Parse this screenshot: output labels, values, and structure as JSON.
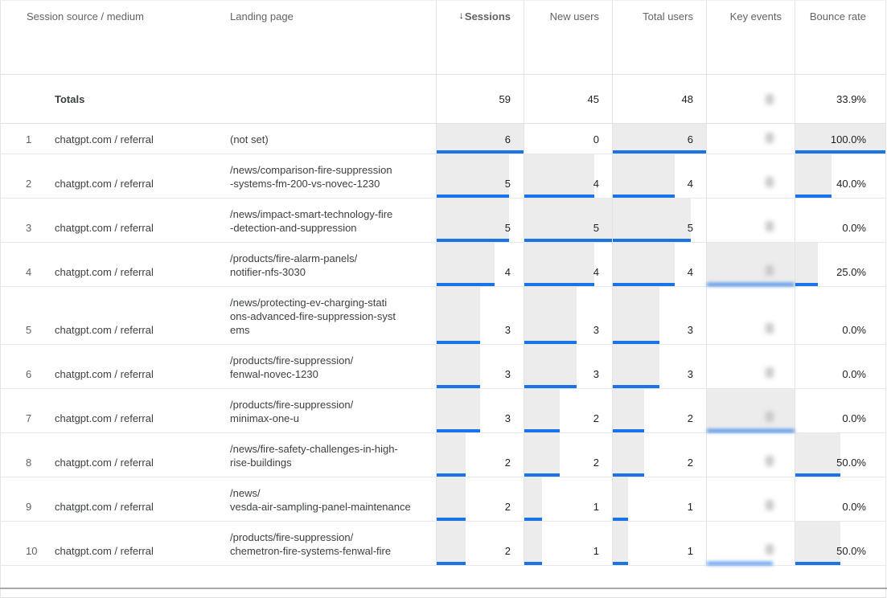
{
  "header": {
    "session_source": "Session source / medium",
    "landing_page": "Landing page",
    "sort_icon": "↓",
    "sessions": "Sessions",
    "new_users": "New users",
    "total_users": "Total users",
    "key_events": "Key events",
    "bounce_rate": "Bounce rate"
  },
  "sort": {
    "column": "Sessions",
    "direction": "descending"
  },
  "totals": {
    "label": "Totals",
    "sessions": "59",
    "new_users": "45",
    "total_users": "48",
    "key_events_redacted": true,
    "bounce_rate": "33.9%"
  },
  "column_maxima": {
    "sessions": 6,
    "new_users": 5,
    "total_users": 6,
    "bounce_rate": 100
  },
  "colors": {
    "bar": "#1a73e8",
    "bar_background": "#ececec"
  },
  "rows": [
    {
      "rank": "1",
      "source": "chatgpt.com / referral",
      "landing_lines": [
        "(not set)"
      ],
      "sessions": 6,
      "new_users": 0,
      "total_users": 6,
      "key_events_redacted": true,
      "key_bar_bg": false,
      "key_bar_line": 0,
      "bounce_rate": "100.0%"
    },
    {
      "rank": "2",
      "source": "chatgpt.com / referral",
      "landing_lines": [
        "/news/comparison-fire-suppression",
        "-systems-fm-200-vs-novec-1230"
      ],
      "sessions": 5,
      "new_users": 4,
      "total_users": 4,
      "key_events_redacted": true,
      "key_bar_bg": false,
      "key_bar_line": 0,
      "bounce_rate": "40.0%"
    },
    {
      "rank": "3",
      "source": "chatgpt.com / referral",
      "landing_lines": [
        "/news/impact-smart-technology-fire",
        "-detection-and-suppression"
      ],
      "sessions": 5,
      "new_users": 5,
      "total_users": 5,
      "key_events_redacted": true,
      "key_bar_bg": false,
      "key_bar_line": 0,
      "bounce_rate": "0.0%"
    },
    {
      "rank": "4",
      "source": "chatgpt.com / referral",
      "landing_lines": [
        "/products/fire-alarm-panels/",
        "notifier-nfs-3030"
      ],
      "sessions": 4,
      "new_users": 4,
      "total_users": 4,
      "key_events_redacted": true,
      "key_bar_bg": true,
      "key_bar_line": 100,
      "bounce_rate": "25.0%"
    },
    {
      "rank": "5",
      "source": "chatgpt.com / referral",
      "landing_lines": [
        "/news/protecting-ev-charging-stati",
        "ons-advanced-fire-suppression-syst",
        "ems"
      ],
      "sessions": 3,
      "new_users": 3,
      "total_users": 3,
      "key_events_redacted": true,
      "key_bar_bg": false,
      "key_bar_line": 0,
      "bounce_rate": "0.0%"
    },
    {
      "rank": "6",
      "source": "chatgpt.com / referral",
      "landing_lines": [
        "/products/fire-suppression/",
        "fenwal-novec-1230"
      ],
      "sessions": 3,
      "new_users": 3,
      "total_users": 3,
      "key_events_redacted": true,
      "key_bar_bg": false,
      "key_bar_line": 0,
      "bounce_rate": "0.0%"
    },
    {
      "rank": "7",
      "source": "chatgpt.com / referral",
      "landing_lines": [
        "/products/fire-suppression/",
        "minimax-one-u"
      ],
      "sessions": 3,
      "new_users": 2,
      "total_users": 2,
      "key_events_redacted": true,
      "key_bar_bg": true,
      "key_bar_line": 100,
      "bounce_rate": "0.0%"
    },
    {
      "rank": "8",
      "source": "chatgpt.com / referral",
      "landing_lines": [
        "/news/fire-safety-challenges-in-high-",
        "rise-buildings"
      ],
      "sessions": 2,
      "new_users": 2,
      "total_users": 2,
      "key_events_redacted": true,
      "key_bar_bg": false,
      "key_bar_line": 0,
      "bounce_rate": "50.0%"
    },
    {
      "rank": "9",
      "source": "chatgpt.com / referral",
      "landing_lines": [
        "/news/",
        "vesda-air-sampling-panel-maintenance"
      ],
      "sessions": 2,
      "new_users": 1,
      "total_users": 1,
      "key_events_redacted": true,
      "key_bar_bg": false,
      "key_bar_line": 0,
      "bounce_rate": "0.0%"
    },
    {
      "rank": "10",
      "source": "chatgpt.com / referral",
      "landing_lines": [
        "/products/fire-suppression/",
        "chemetron-fire-systems-fenwal-fire"
      ],
      "sessions": 2,
      "new_users": 1,
      "total_users": 1,
      "key_events_redacted": true,
      "key_bar_bg": false,
      "key_bar_line": 75,
      "bounce_rate": "50.0%"
    }
  ]
}
